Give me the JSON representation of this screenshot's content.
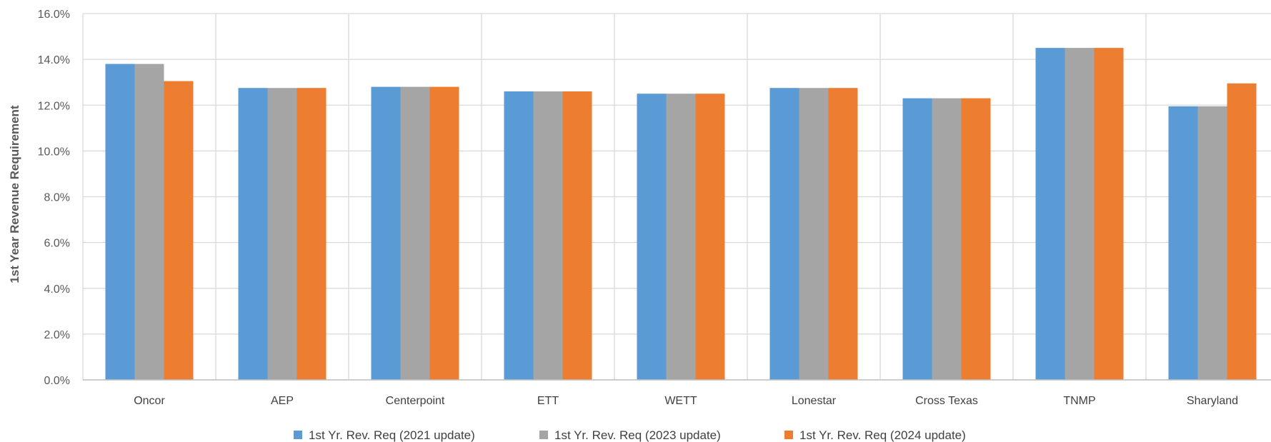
{
  "chart_data": {
    "type": "bar",
    "title": "",
    "xlabel": "",
    "ylabel": "1st Year Revenue Requirement",
    "ylim": [
      0,
      16
    ],
    "y_tick_step": 2,
    "y_tick_format": "percent_1dp",
    "grid": true,
    "legend_position": "bottom",
    "categories": [
      "Oncor",
      "AEP",
      "Centerpoint",
      "ETT",
      "WETT",
      "Lonestar",
      "Cross Texas",
      "TNMP",
      "Sharyland"
    ],
    "series": [
      {
        "name": "1st Yr. Rev. Req (2021 update)",
        "color": "#5B9BD5",
        "values": [
          13.8,
          12.75,
          12.8,
          12.6,
          12.5,
          12.75,
          12.3,
          14.5,
          11.95
        ]
      },
      {
        "name": "1st Yr. Rev. Req (2023 update)",
        "color": "#A5A5A5",
        "values": [
          13.8,
          12.75,
          12.8,
          12.6,
          12.5,
          12.75,
          12.3,
          14.5,
          11.95
        ]
      },
      {
        "name": "1st Yr. Rev. Req (2024 update)",
        "color": "#ED7D31",
        "values": [
          13.05,
          12.75,
          12.8,
          12.6,
          12.5,
          12.75,
          12.3,
          14.5,
          12.95
        ]
      }
    ]
  }
}
